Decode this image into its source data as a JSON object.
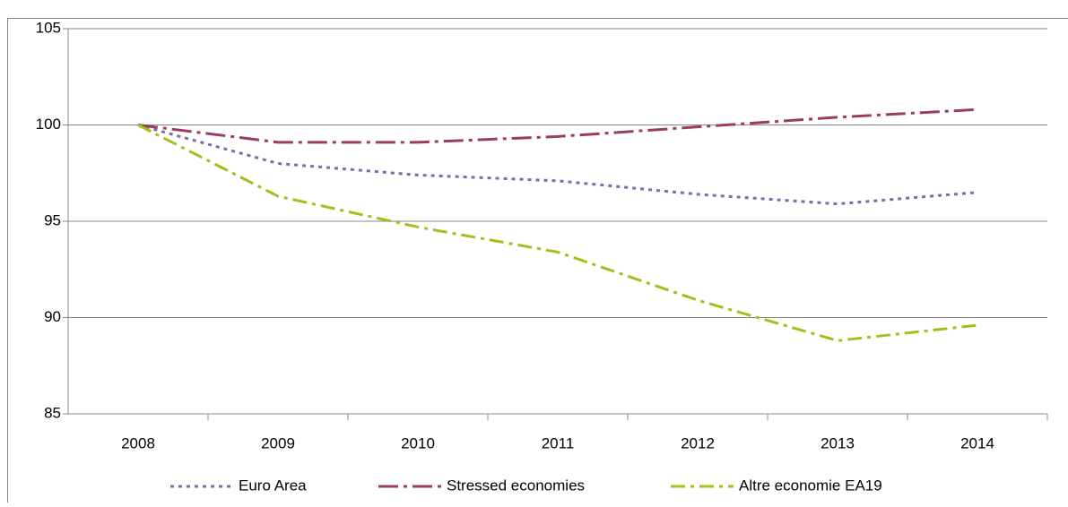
{
  "chart_data": {
    "type": "line",
    "categories": [
      "2008",
      "2009",
      "2010",
      "2011",
      "2012",
      "2013",
      "2014"
    ],
    "series": [
      {
        "name": "Euro Area",
        "color": "#7070b0",
        "dash": "4 5",
        "values": [
          100,
          98.0,
          97.4,
          97.1,
          96.4,
          95.9,
          96.5
        ]
      },
      {
        "name": "Stressed economies",
        "color": "#9b3a62",
        "dash": "22 6 4 6",
        "values": [
          100,
          99.1,
          99.1,
          99.4,
          99.9,
          100.4,
          100.8
        ]
      },
      {
        "name": "Altre economie EA19",
        "color": "#9bc31c",
        "dash": "16 6 4 6",
        "values": [
          100,
          96.3,
          94.7,
          93.4,
          90.9,
          88.8,
          89.6
        ]
      }
    ],
    "ylim": [
      85,
      105
    ],
    "yticks": [
      85,
      90,
      95,
      100,
      105
    ],
    "grid": true,
    "legend": "bottom"
  }
}
